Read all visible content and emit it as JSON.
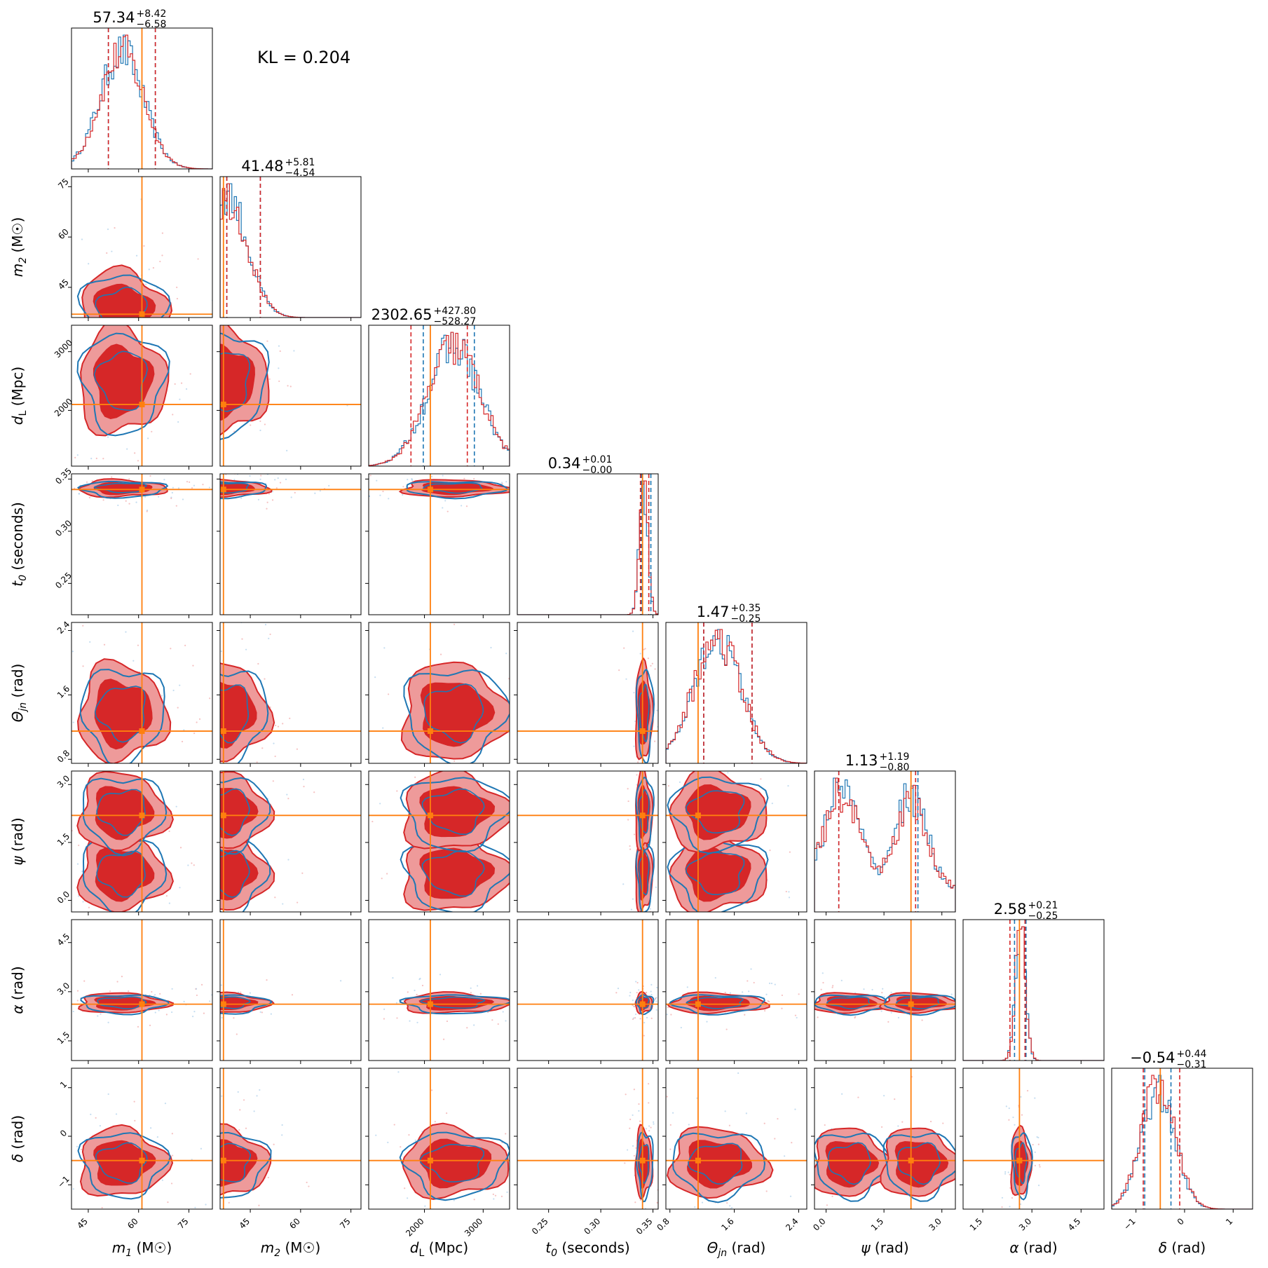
{
  "kl_text": "KL = 0.204",
  "colors": {
    "red": "#d62728",
    "red_light": "#ee9a9a",
    "blue": "#1f77b4",
    "orange": "#ff7f0e"
  },
  "chart_data": {
    "type": "corner",
    "description_series": [
      "red posterior (filled contours)",
      "blue posterior (line contours)"
    ],
    "params": [
      {
        "key": "m1",
        "label": "m_1 (M☉)",
        "sym": "m",
        "sub": "1",
        "unit": "(M☉)",
        "range": [
          40,
          82
        ],
        "ticks": [
          45,
          60,
          75
        ],
        "ticklabels": [
          "45",
          "60",
          "75"
        ],
        "truth": 61,
        "title_median": "57.34",
        "title_plus": "+8.42",
        "title_minus": "−6.58",
        "mode": 55,
        "sd": 6.5,
        "q_red": [
          51,
          65
        ],
        "q_blue": [
          51,
          65
        ]
      },
      {
        "key": "m2",
        "label": "m_2 (M☉)",
        "sym": "m",
        "sub": "2",
        "unit": "(M☉)",
        "range": [
          36,
          78
        ],
        "ticks": [
          45,
          60,
          75
        ],
        "ticklabels": [
          "45",
          "60",
          "75"
        ],
        "truth": 37,
        "title_median": "41.48",
        "title_plus": "+5.81",
        "title_minus": "−4.54",
        "mode": 38,
        "sd": 6,
        "q_red": [
          38,
          48
        ],
        "q_blue": [
          38,
          48
        ]
      },
      {
        "key": "dL",
        "label": "d_L (Mpc)",
        "sym": "d",
        "sub": "L",
        "unit": "(Mpc)",
        "range": [
          1050,
          3450
        ],
        "ticks": [
          2000,
          3000
        ],
        "ticklabels": [
          "2000",
          "3000"
        ],
        "truth": 2100,
        "title_median": "2302.65",
        "title_plus": "+427.80",
        "title_minus": "−528.27",
        "mode": 2500,
        "sd": 450,
        "q_red": [
          1770,
          2730
        ],
        "q_blue": [
          1980,
          2850
        ]
      },
      {
        "key": "t0",
        "label": "t_0 (seconds)",
        "sym": "t",
        "sub": "0",
        "unit": "(seconds)",
        "range": [
          0.22,
          0.355
        ],
        "ticks": [
          0.25,
          0.3,
          0.35
        ],
        "ticklabels": [
          "0.25",
          "0.30",
          "0.35"
        ],
        "truth": 0.34,
        "title_median": "0.34",
        "title_plus": "+0.01",
        "title_minus": "−0.00",
        "mode": 0.341,
        "sd": 0.004,
        "q_red": [
          0.338,
          0.346
        ],
        "q_blue": [
          0.339,
          0.348
        ]
      },
      {
        "key": "theta",
        "label": "Θ_jn (rad)",
        "sym": "Θ",
        "sub": "jn",
        "unit": "(rad)",
        "range": [
          0.75,
          2.5
        ],
        "ticks": [
          0.8,
          1.6,
          2.4
        ],
        "ticklabels": [
          "0.8",
          "1.6",
          "2.4"
        ],
        "truth": 1.15,
        "title_median": "1.47",
        "title_plus": "+0.35",
        "title_minus": "−0.25",
        "mode": 1.38,
        "sd": 0.3,
        "q_red": [
          1.22,
          1.82
        ],
        "q_blue": [
          1.22,
          1.82
        ]
      },
      {
        "key": "psi",
        "label": "ψ (rad)",
        "sym": "ψ",
        "sub": "",
        "unit": "(rad)",
        "range": [
          -0.3,
          3.35
        ],
        "ticks": [
          0.0,
          1.5,
          3.0
        ],
        "ticklabels": [
          "0.0",
          "1.5",
          "3.0"
        ],
        "truth": 2.2,
        "title_median": "1.13",
        "title_plus": "+1.19",
        "title_minus": "−0.80",
        "mode": 1.0,
        "sd": 0.9,
        "q_red": [
          0.33,
          2.32
        ],
        "q_blue": [
          0.33,
          2.38
        ]
      },
      {
        "key": "alpha",
        "label": "α (rad)",
        "sym": "α",
        "sub": "",
        "unit": "(rad)",
        "range": [
          0.9,
          5.2
        ],
        "ticks": [
          1.5,
          3.0,
          4.5
        ],
        "ticklabels": [
          "1.5",
          "3.0",
          "4.5"
        ],
        "truth": 2.62,
        "title_median": "2.58",
        "title_plus": "+0.21",
        "title_minus": "−0.25",
        "mode": 2.65,
        "sd": 0.15,
        "q_red": [
          2.33,
          2.79
        ],
        "q_blue": [
          2.47,
          2.82
        ]
      },
      {
        "key": "delta",
        "label": "δ (rad)",
        "sym": "δ",
        "sub": "",
        "unit": "(rad)",
        "range": [
          -1.5,
          1.4
        ],
        "ticks": [
          -1,
          0,
          1
        ],
        "ticklabels": [
          "−1",
          "0",
          "1"
        ],
        "truth": -0.5,
        "title_median": "−0.54",
        "title_plus": "+0.44",
        "title_minus": "−0.31",
        "mode": -0.55,
        "sd": 0.35,
        "q_red": [
          -0.85,
          -0.1
        ],
        "q_blue": [
          -0.82,
          -0.28
        ]
      }
    ]
  }
}
